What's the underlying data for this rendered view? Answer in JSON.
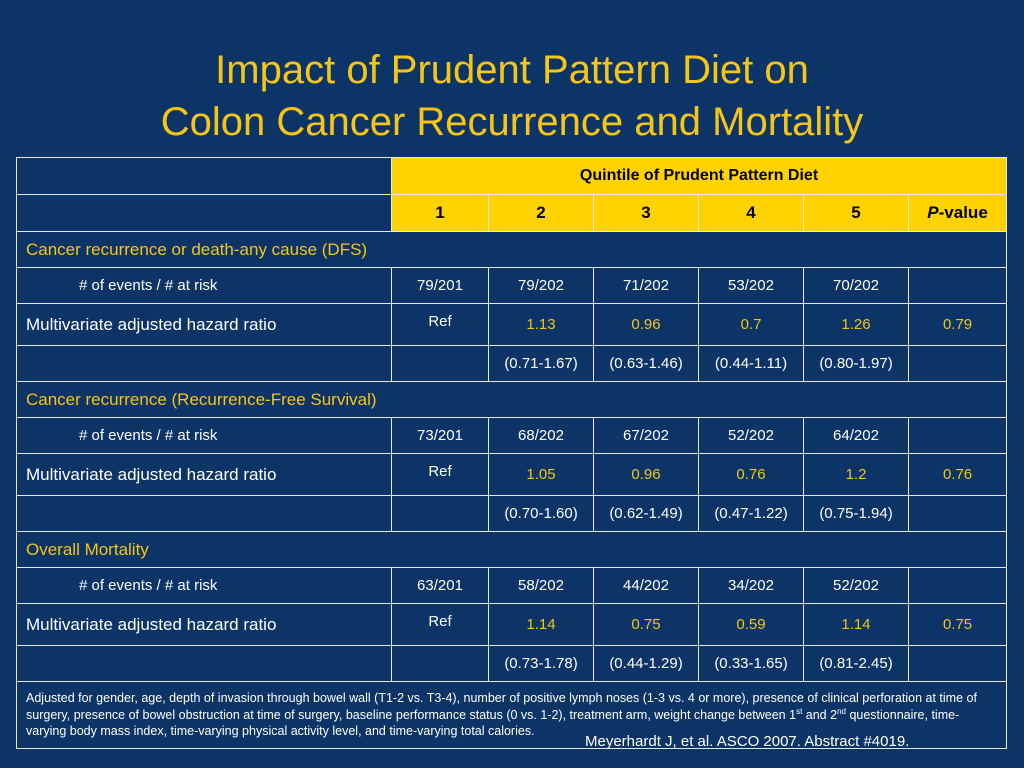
{
  "title": {
    "line1": "Impact of Prudent Pattern Diet on",
    "line2": "Colon Cancer Recurrence and Mortality"
  },
  "table": {
    "group_header": "Quintile of Prudent Pattern Diet",
    "columns": [
      "1",
      "2",
      "3",
      "4",
      "5"
    ],
    "p_label_italic": "P",
    "p_label_rest": "-value",
    "sections": [
      {
        "title": "Cancer recurrence or death-any cause (DFS)",
        "events_label": "# of events / # at risk",
        "events": [
          "79/201",
          "79/202",
          "71/202",
          "53/202",
          "70/202"
        ],
        "hr_label": "Multivariate adjusted hazard ratio",
        "hr_ref": "Ref",
        "hr": [
          "1.13",
          "0.96",
          "0.7",
          "1.26"
        ],
        "p": "0.79",
        "ci": [
          "(0.71-1.67)",
          "(0.63-1.46)",
          "(0.44-1.11)",
          "(0.80-1.97)"
        ]
      },
      {
        "title": "Cancer recurrence (Recurrence-Free Survival)",
        "events_label": "# of events / # at risk",
        "events": [
          "73/201",
          "68/202",
          "67/202",
          "52/202",
          "64/202"
        ],
        "hr_label": "Multivariate adjusted hazard ratio",
        "hr_ref": "Ref",
        "hr": [
          "1.05",
          "0.96",
          "0.76",
          "1.2"
        ],
        "p": "0.76",
        "ci": [
          "(0.70-1.60)",
          "(0.62-1.49)",
          "(0.47-1.22)",
          "(0.75-1.94)"
        ]
      },
      {
        "title": "Overall Mortality",
        "events_label": "# of events / # at risk",
        "events": [
          "63/201",
          "58/202",
          "44/202",
          "34/202",
          "52/202"
        ],
        "hr_label": "Multivariate adjusted hazard ratio",
        "hr_ref": "Ref",
        "hr": [
          "1.14",
          "0.75",
          "0.59",
          "1.14"
        ],
        "p": "0.75",
        "ci": [
          "(0.73-1.78)",
          "(0.44-1.29)",
          "(0.33-1.65)",
          "(0.81-2.45)"
        ]
      }
    ],
    "footnote": {
      "part1": "Adjusted for gender, age, depth of invasion through bowel wall (T1-2 vs. T3-4), number of positive lymph noses (1-3 vs. 4 or more), presence of clinical perforation at time of surgery, presence of bowel obstruction at time of surgery, baseline performance status (0 vs. 1-2), treatment arm, weight change between 1",
      "sup1": "st",
      "part2": " and 2",
      "sup2": "nd",
      "part3": " questionnaire, time-varying body mass index, time-varying physical activity level, and time-varying total calories."
    }
  },
  "citation": "Meyerhardt J, et al. ASCO 2007. Abstract #4019.",
  "colors": {
    "background": "#0d3466",
    "title": "#f5c518",
    "header_fill": "#ffd200",
    "highlight_text": "#f5c518"
  }
}
